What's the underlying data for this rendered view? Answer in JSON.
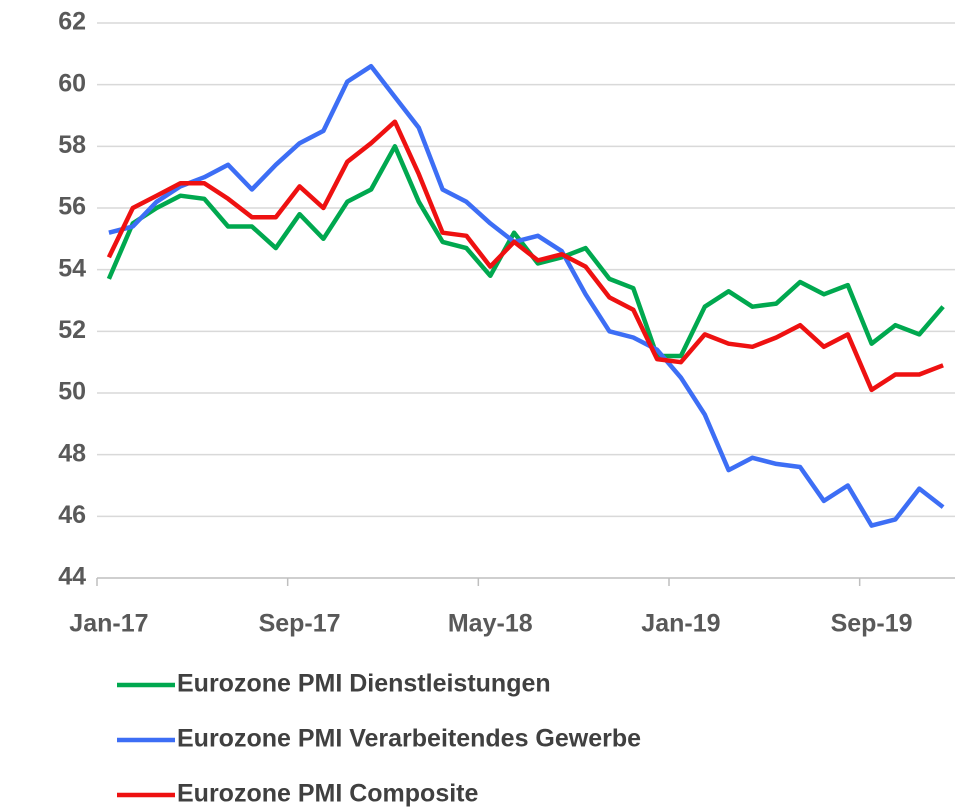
{
  "chart_data": {
    "type": "line",
    "categories": [
      "Jan-17",
      null,
      null,
      null,
      null,
      null,
      null,
      null,
      "Sep-17",
      null,
      null,
      null,
      null,
      null,
      null,
      null,
      "May-18",
      null,
      null,
      null,
      null,
      null,
      null,
      null,
      "Jan-19",
      null,
      null,
      null,
      null,
      null,
      null,
      null,
      "Sep-19",
      null,
      null,
      null
    ],
    "series": [
      {
        "name": "Eurozone PMI Dienstleistungen",
        "color": "#00a84f",
        "values": [
          53.7,
          55.5,
          56.0,
          56.4,
          56.3,
          55.4,
          55.4,
          54.7,
          55.8,
          55.0,
          56.2,
          56.6,
          58.0,
          56.2,
          54.9,
          54.7,
          53.8,
          55.2,
          54.2,
          54.4,
          54.7,
          53.7,
          53.4,
          51.2,
          51.2,
          52.8,
          53.3,
          52.8,
          52.9,
          53.6,
          53.2,
          53.5,
          51.6,
          52.2,
          51.9,
          52.8
        ]
      },
      {
        "name": "Eurozone PMI Verarbeitendes Gewerbe",
        "color": "#3d6ef5",
        "values": [
          55.2,
          55.4,
          56.2,
          56.7,
          57.0,
          57.4,
          56.6,
          57.4,
          58.1,
          58.5,
          60.1,
          60.6,
          59.6,
          58.6,
          56.6,
          56.2,
          55.5,
          54.9,
          55.1,
          54.6,
          53.2,
          52.0,
          51.8,
          51.4,
          50.5,
          49.3,
          47.5,
          47.9,
          47.7,
          47.6,
          46.5,
          47.0,
          45.7,
          45.9,
          46.9,
          46.3
        ]
      },
      {
        "name": "Eurozone PMI Composite",
        "color": "#ee1111",
        "values": [
          54.4,
          56.0,
          56.4,
          56.8,
          56.8,
          56.3,
          55.7,
          55.7,
          56.7,
          56.0,
          57.5,
          58.1,
          58.8,
          57.1,
          55.2,
          55.1,
          54.1,
          54.9,
          54.3,
          54.5,
          54.1,
          53.1,
          52.7,
          51.1,
          51.0,
          51.9,
          51.6,
          51.5,
          51.8,
          52.2,
          51.5,
          51.9,
          50.1,
          50.6,
          50.6,
          50.9
        ]
      }
    ],
    "ylim": [
      44,
      62
    ],
    "yticks": [
      44,
      46,
      48,
      50,
      52,
      54,
      56,
      58,
      60,
      62
    ],
    "grid": true
  }
}
